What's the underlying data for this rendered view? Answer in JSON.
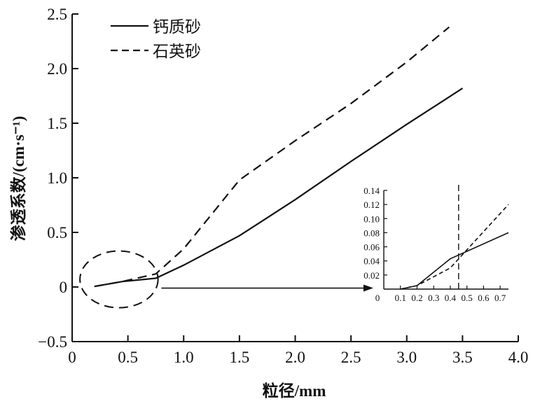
{
  "chart_data": [
    {
      "type": "line",
      "xlabel": "粒径/mm",
      "ylabel": "渗透系数/(cm·s⁻¹)",
      "xlim": [
        0,
        4.0
      ],
      "ylim": [
        -0.5,
        2.5
      ],
      "xticks": [
        "0",
        "0.5",
        "1.0",
        "1.5",
        "2.0",
        "2.5",
        "3.0",
        "3.5",
        "4.0"
      ],
      "yticks": [
        "−0.5",
        "0",
        "0.5",
        "1.0",
        "1.5",
        "2.0",
        "2.5"
      ],
      "grid": false,
      "legend_position": "top-left",
      "series": [
        {
          "name": "钙质砂",
          "line_style": "solid",
          "color": "#111111",
          "x": [
            0.2,
            0.45,
            0.75,
            1.0,
            1.5,
            2.0,
            2.5,
            3.0,
            3.5
          ],
          "y": [
            0.005,
            0.05,
            0.08,
            0.2,
            0.47,
            0.8,
            1.15,
            1.49,
            1.82
          ]
        },
        {
          "name": "石英砂",
          "line_style": "dashed",
          "color": "#111111",
          "x": [
            0.2,
            0.45,
            0.75,
            1.0,
            1.5,
            2.0,
            2.5,
            3.0,
            3.38
          ],
          "y": [
            0.005,
            0.05,
            0.12,
            0.35,
            0.98,
            1.34,
            1.68,
            2.06,
            2.38
          ]
        }
      ],
      "annotations": [
        {
          "kind": "dashed-ellipse",
          "center": [
            0.42,
            0.07
          ],
          "radius_x": 0.35,
          "radius_y": 0.26
        },
        {
          "kind": "arrow",
          "from": [
            0.8,
            -0.01
          ],
          "to": [
            2.7,
            -0.01
          ]
        }
      ]
    },
    {
      "type": "line",
      "role": "inset",
      "xlim": [
        0,
        0.75
      ],
      "ylim": [
        0,
        0.14
      ],
      "xticks": [
        "0",
        "0.1",
        "0.2",
        "0.3",
        "0.4",
        "0.5",
        "0.6",
        "0.7"
      ],
      "yticks": [
        "0.02",
        "0.04",
        "0.06",
        "0.08",
        "0.10",
        "0.12",
        "0.14"
      ],
      "series": [
        {
          "name": "钙质砂",
          "line_style": "solid",
          "x": [
            0.1,
            0.2,
            0.4,
            0.75
          ],
          "y": [
            0.0,
            0.005,
            0.043,
            0.08
          ]
        },
        {
          "name": "石英砂",
          "line_style": "dashed",
          "x": [
            0.1,
            0.2,
            0.4,
            0.75
          ],
          "y": [
            0.0,
            0.005,
            0.03,
            0.12
          ]
        }
      ],
      "reference_line": {
        "x": 0.45,
        "style": "dashed"
      }
    }
  ]
}
